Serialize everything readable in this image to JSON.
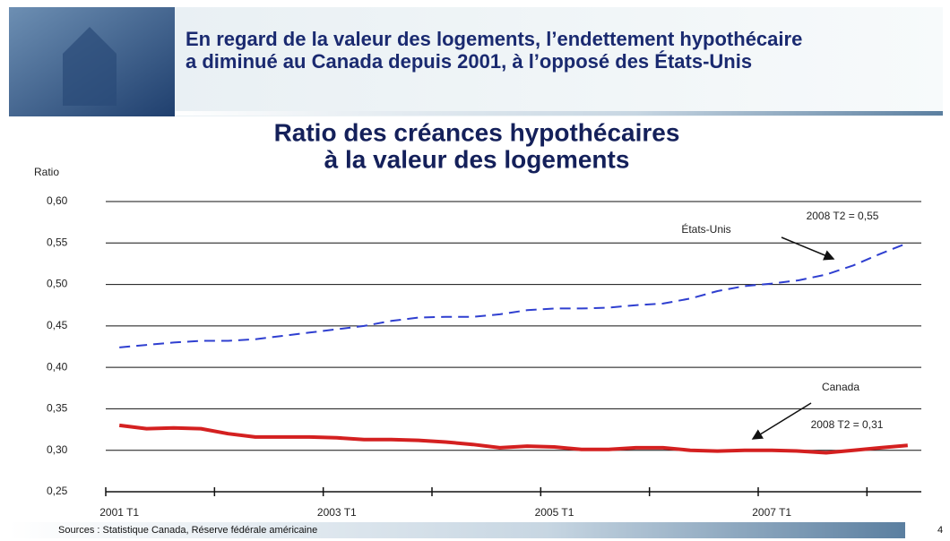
{
  "slide": {
    "header": [
      "En regard de la valeur des logements, l’endettement hypothécaire",
      "a diminué au Canada depuis 2001, à l’opposé des États-Unis"
    ],
    "sources": "Sources : Statistique Canada, Réserve fédérale américaine",
    "page_number": "4"
  },
  "chart_data": {
    "type": "line",
    "title": [
      "Ratio des créances hypothécaires",
      "à la valeur des logements"
    ],
    "y_label": "Ratio",
    "categories": [
      "2001 T1",
      null,
      null,
      null,
      null,
      null,
      null,
      null,
      "2003 T1",
      null,
      null,
      null,
      null,
      null,
      null,
      null,
      "2005 T1",
      null,
      null,
      null,
      null,
      null,
      null,
      null,
      "2007 T1",
      null,
      null,
      null,
      null,
      null
    ],
    "series": [
      {
        "name": "États-Unis",
        "color": "#2f3fd0",
        "style": "dashed",
        "values": [
          0.424,
          0.427,
          0.43,
          0.432,
          0.432,
          0.434,
          0.438,
          0.442,
          0.446,
          0.45,
          0.456,
          0.46,
          0.461,
          0.461,
          0.464,
          0.469,
          0.471,
          0.471,
          0.472,
          0.475,
          0.477,
          0.483,
          0.492,
          0.498,
          0.501,
          0.505,
          0.512,
          0.523,
          0.537,
          0.55
        ]
      },
      {
        "name": "Canada",
        "color": "#d42020",
        "style": "solid",
        "values": [
          0.33,
          0.326,
          0.327,
          0.326,
          0.32,
          0.316,
          0.316,
          0.316,
          0.315,
          0.313,
          0.313,
          0.312,
          0.31,
          0.307,
          0.303,
          0.305,
          0.304,
          0.301,
          0.301,
          0.303,
          0.303,
          0.3,
          0.299,
          0.3,
          0.3,
          0.299,
          0.297,
          0.3,
          0.303,
          0.306
        ]
      }
    ],
    "annotations": [
      "2008 T2 = 0,55",
      "2008 T2 = 0,31"
    ],
    "ylim": [
      0.25,
      0.6
    ],
    "yticks": [
      {
        "value": 0.25,
        "label": "0,25"
      },
      {
        "value": 0.3,
        "label": "0,30"
      },
      {
        "value": 0.35,
        "label": "0,35"
      },
      {
        "value": 0.4,
        "label": "0,40"
      },
      {
        "value": 0.45,
        "label": "0,45"
      },
      {
        "value": 0.5,
        "label": "0,50"
      },
      {
        "value": 0.55,
        "label": "0,55"
      },
      {
        "value": 0.6,
        "label": "0,60"
      }
    ],
    "grid": true
  }
}
